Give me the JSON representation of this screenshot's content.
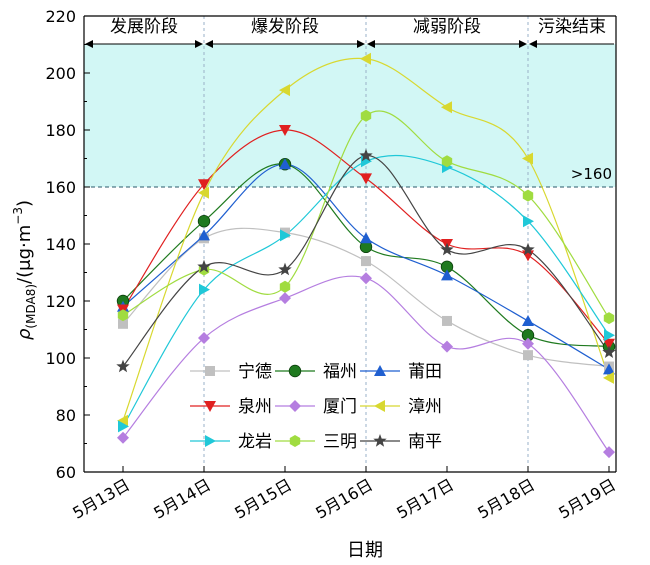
{
  "chart_data": {
    "type": "line",
    "xlabel": "日期",
    "ylabel_main": "ρ",
    "ylabel_sub": "(MDA8)",
    "ylabel_unit": "/(μg·m",
    "ylabel_exp": "−3",
    "ylabel_close": ")",
    "categories": [
      "5月13日",
      "5月14日",
      "5月15日",
      "5月16日",
      "5月17日",
      "5月18日",
      "5月19日"
    ],
    "ylim": [
      60,
      220
    ],
    "yticks": [
      60,
      80,
      100,
      120,
      140,
      160,
      180,
      200,
      220
    ],
    "threshold": {
      "value": 160,
      "label": ">160"
    },
    "phases": [
      {
        "label": "发展阶段",
        "start": -0.5,
        "end": 1
      },
      {
        "label": "爆发阶段",
        "start": 1,
        "end": 3
      },
      {
        "label": "减弱阶段",
        "start": 3,
        "end": 5
      },
      {
        "label": "污染结束",
        "start": 5,
        "end": 6.1
      }
    ],
    "series": [
      {
        "name": "宁德",
        "color": "#c0c0c0",
        "marker": "square",
        "values": [
          112,
          142,
          144,
          134,
          113,
          101,
          97
        ]
      },
      {
        "name": "福州",
        "color": "#1f7a1f",
        "marker": "circle",
        "values": [
          120,
          148,
          168,
          139,
          132,
          108,
          104
        ]
      },
      {
        "name": "莆田",
        "color": "#1f5fd0",
        "marker": "triangle",
        "values": [
          118,
          143,
          168,
          142,
          129,
          113,
          96
        ]
      },
      {
        "name": "泉州",
        "color": "#e02020",
        "marker": "tri-down",
        "values": [
          117,
          161,
          180,
          163,
          140,
          136,
          105
        ]
      },
      {
        "name": "厦门",
        "color": "#b57ee0",
        "marker": "diamond",
        "values": [
          72,
          107,
          121,
          128,
          104,
          105,
          67
        ]
      },
      {
        "name": "漳州",
        "color": "#d8d830",
        "marker": "tri-left",
        "values": [
          78,
          158,
          194,
          205,
          188,
          170,
          93
        ]
      },
      {
        "name": "龙岩",
        "color": "#20c8d8",
        "marker": "tri-right",
        "values": [
          76,
          124,
          143,
          169,
          167,
          148,
          108
        ]
      },
      {
        "name": "三明",
        "color": "#a0dc40",
        "marker": "hexagon",
        "values": [
          115,
          131,
          125,
          185,
          169,
          157,
          114
        ]
      },
      {
        "name": "南平",
        "color": "#444444",
        "marker": "star",
        "values": [
          97,
          132,
          131,
          171,
          138,
          138,
          102
        ]
      }
    ]
  }
}
